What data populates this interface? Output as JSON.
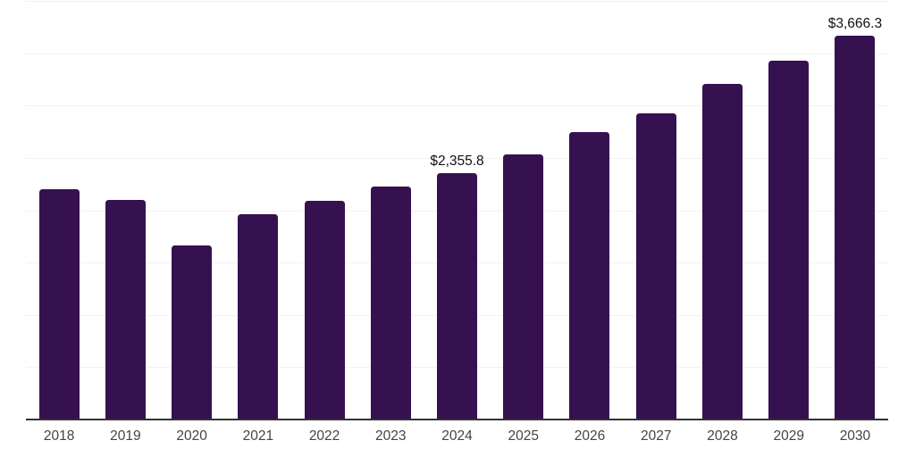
{
  "chart_data": {
    "type": "bar",
    "title": "",
    "xlabel": "",
    "ylabel": "",
    "categories": [
      "2018",
      "2019",
      "2020",
      "2021",
      "2022",
      "2023",
      "2024",
      "2025",
      "2026",
      "2027",
      "2028",
      "2029",
      "2030"
    ],
    "values": [
      2203,
      2095,
      1667,
      1966,
      2087,
      2224,
      2355.8,
      2531,
      2744,
      2928,
      3204,
      3426,
      3666.3
    ],
    "value_labels": [
      "",
      "",
      "",
      "",
      "",
      "",
      "$2,355.8",
      "",
      "",
      "",
      "",
      "",
      "$3,666.3"
    ],
    "ylim": [
      0,
      4000
    ],
    "gridline_interval": 500,
    "grid": "horizontal",
    "legend": "none"
  },
  "style": {
    "bar_color": "#361150",
    "grid_color": "#f2f2f2",
    "axis_color": "#333333",
    "tick_label_color": "#444444",
    "value_label_color": "#111111",
    "background_color": "#ffffff"
  }
}
